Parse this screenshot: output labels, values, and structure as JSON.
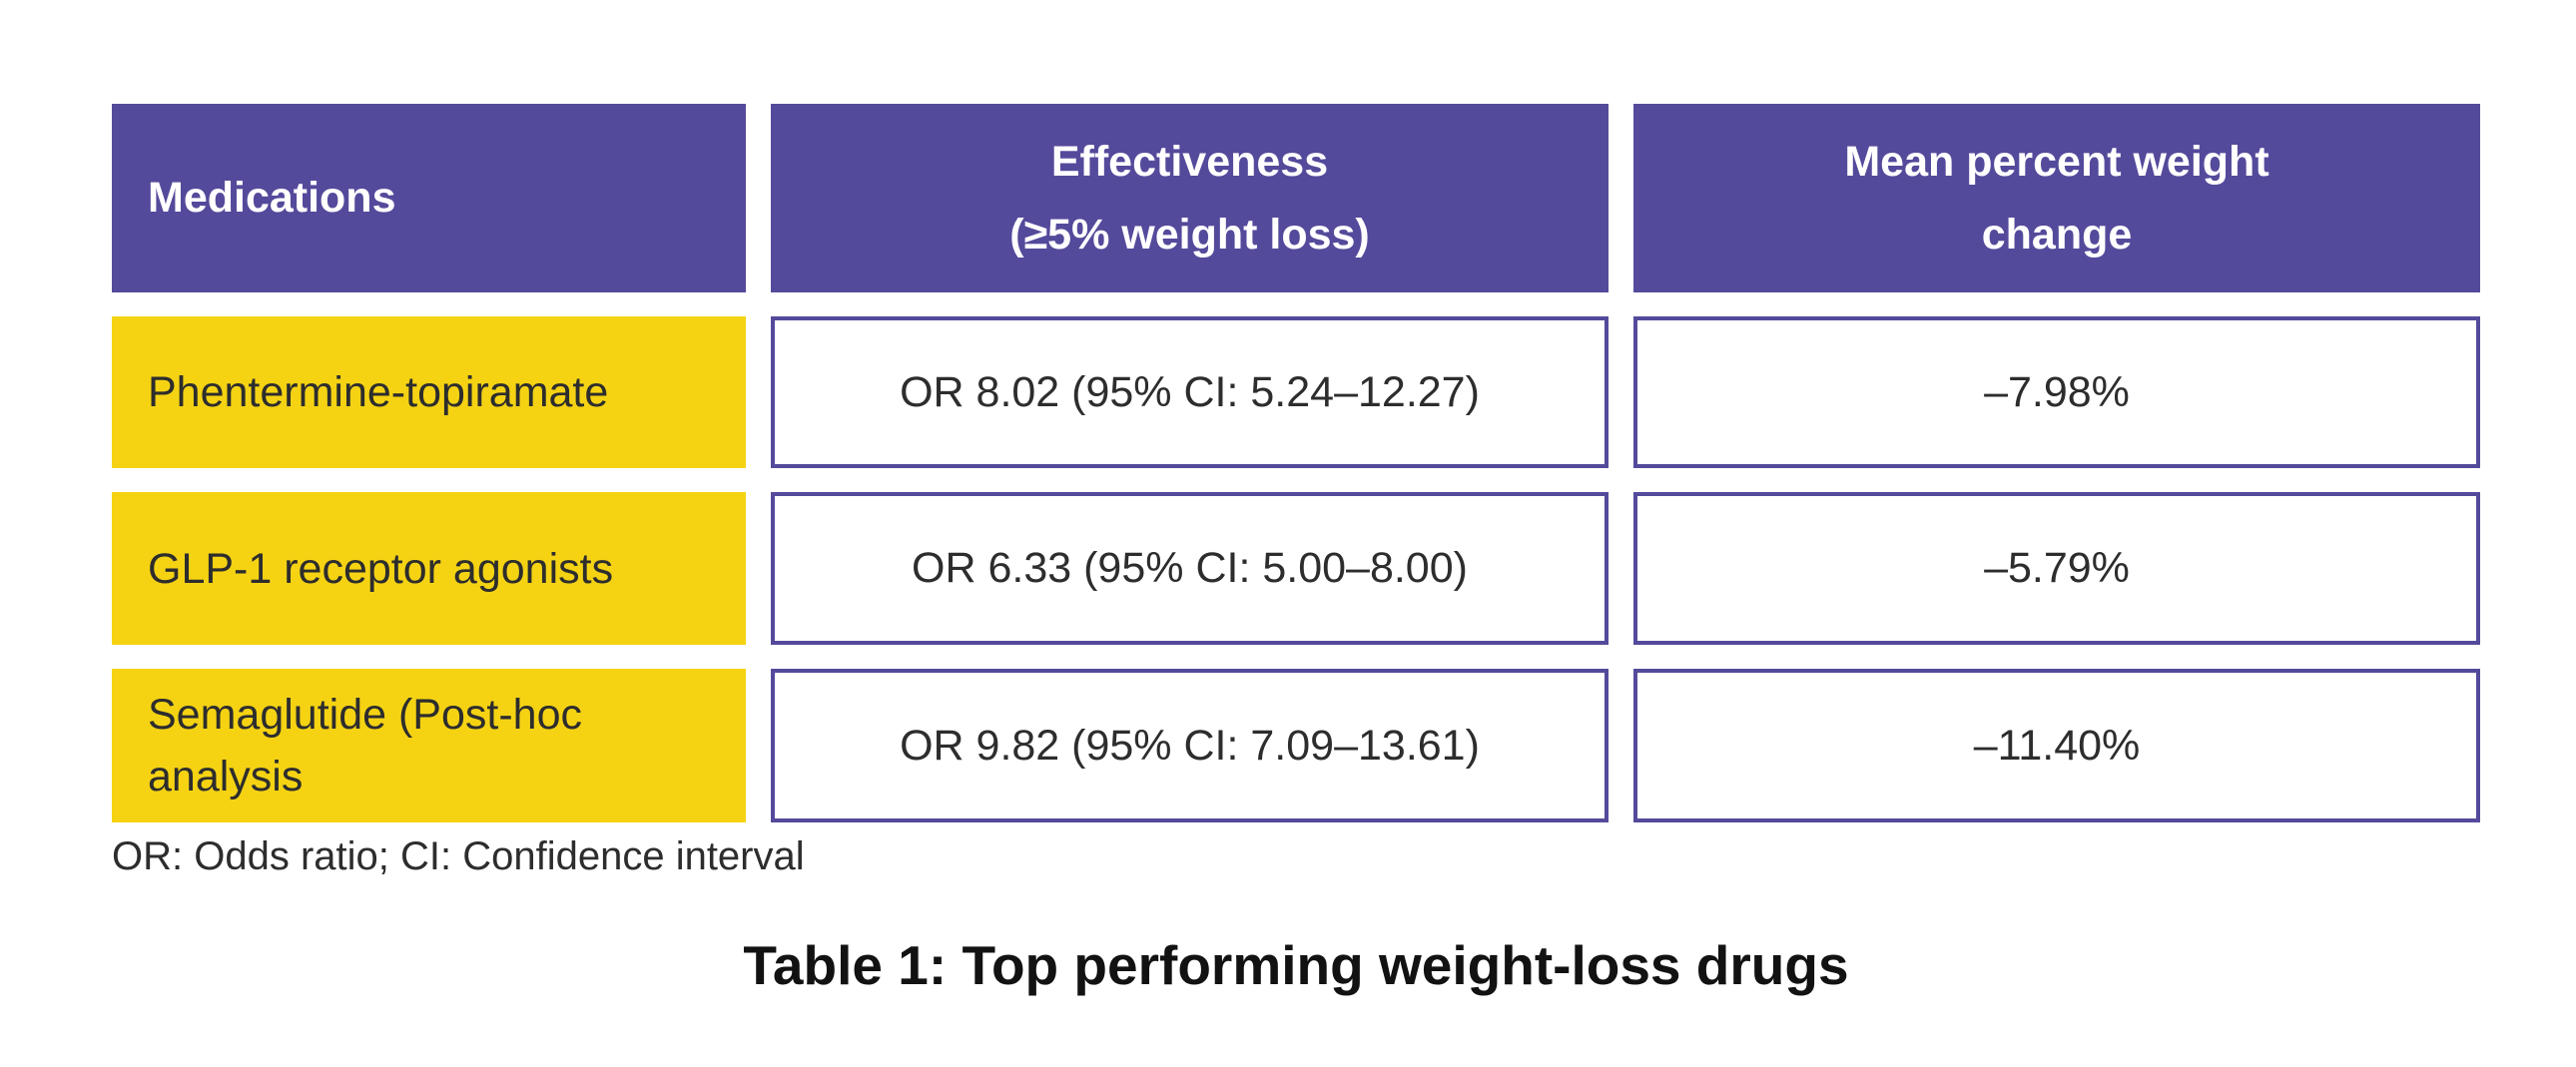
{
  "colors": {
    "header_bg": "#544A9B",
    "row_label_bg": "#F5D313",
    "value_border": "#544A9B",
    "header_text": "#ffffff",
    "body_text": "#2D2D2D",
    "caption_text": "#121212"
  },
  "table": {
    "headers": {
      "medications": "Medications",
      "effectiveness": {
        "line1": "Effectiveness",
        "line2": "(≥5% weight loss)"
      },
      "mean_change": {
        "line1": "Mean percent weight",
        "line2": "change"
      }
    },
    "rows": [
      {
        "medication": "Phentermine-topiramate",
        "effectiveness": "OR 8.02 (95% CI: 5.24–12.27)",
        "mean_change": "–7.98%"
      },
      {
        "medication": "GLP-1 receptor agonists",
        "effectiveness": "OR 6.33 (95% CI: 5.00–8.00)",
        "mean_change": "–5.79%"
      },
      {
        "medication": "Semaglutide (Post-hoc analysis",
        "effectiveness": "OR 9.82 (95% CI: 7.09–13.61)",
        "mean_change": "–11.40%"
      }
    ],
    "footnote": "OR: Odds ratio; CI: Confidence interval",
    "caption": "Table 1: Top performing weight-loss drugs"
  },
  "chart_data": {
    "type": "table",
    "title": "Table 1: Top performing weight-loss drugs",
    "columns": [
      "Medications",
      "Effectiveness (≥5% weight loss)",
      "Mean percent weight change"
    ],
    "rows": [
      [
        "Phentermine-topiramate",
        "OR 8.02 (95% CI: 5.24–12.27)",
        "–7.98%"
      ],
      [
        "GLP-1 receptor agonists",
        "OR 6.33 (95% CI: 5.00–8.00)",
        "–5.79%"
      ],
      [
        "Semaglutide (Post-hoc analysis",
        "OR 9.82 (95% CI: 7.09–13.61)",
        "–11.40%"
      ]
    ],
    "numeric": {
      "odds_ratio": [
        8.02,
        6.33,
        9.82
      ],
      "ci_low": [
        5.24,
        5.0,
        7.09
      ],
      "ci_high": [
        12.27,
        8.0,
        13.61
      ],
      "mean_percent_weight_change": [
        -7.98,
        -5.79,
        -11.4
      ]
    },
    "footnote": "OR: Odds ratio; CI: Confidence interval"
  }
}
